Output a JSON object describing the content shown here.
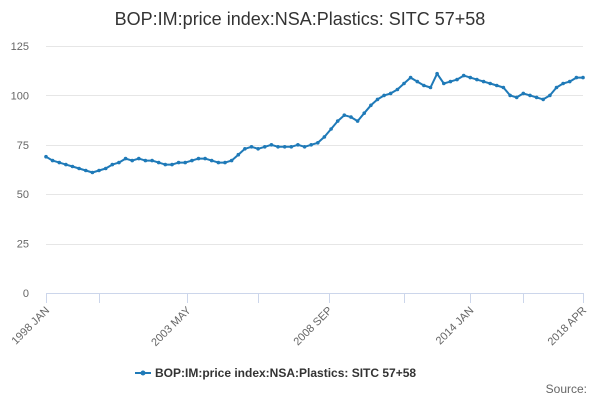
{
  "chart_data": {
    "type": "line",
    "title": "BOP:IM:price index:NSA:Plastics: SITC 57+58",
    "xlabel": "",
    "ylabel": "",
    "ylim": [
      0,
      125
    ],
    "y_ticks": [
      0,
      25,
      50,
      75,
      100,
      125
    ],
    "x_range": [
      1998.0,
      2018.25
    ],
    "x_ticks": [
      {
        "label": "1998 JAN",
        "value": 1998.0
      },
      {
        "label": "2003 MAY",
        "value": 2003.333
      },
      {
        "label": "2008 SEP",
        "value": 2008.667
      },
      {
        "label": "2014 JAN",
        "value": 2014.0
      },
      {
        "label": "2018 APR",
        "value": 2018.25
      }
    ],
    "minor_x_ticks": [
      2000.0,
      2006.0,
      2011.5,
      2016.0
    ],
    "grid": true,
    "legend_position": "bottom",
    "series": [
      {
        "name": "BOP:IM:price index:NSA:Plastics: SITC 57+58",
        "color": "#1f7ab8",
        "x": [
          1998.0,
          1998.25,
          1998.5,
          1998.75,
          1999.0,
          1999.25,
          1999.5,
          1999.75,
          2000.0,
          2000.25,
          2000.5,
          2000.75,
          2001.0,
          2001.25,
          2001.5,
          2001.75,
          2002.0,
          2002.25,
          2002.5,
          2002.75,
          2003.0,
          2003.25,
          2003.5,
          2003.75,
          2004.0,
          2004.25,
          2004.5,
          2004.75,
          2005.0,
          2005.25,
          2005.5,
          2005.75,
          2006.0,
          2006.25,
          2006.5,
          2006.75,
          2007.0,
          2007.25,
          2007.5,
          2007.75,
          2008.0,
          2008.25,
          2008.5,
          2008.75,
          2009.0,
          2009.25,
          2009.5,
          2009.75,
          2010.0,
          2010.25,
          2010.5,
          2010.75,
          2011.0,
          2011.25,
          2011.5,
          2011.75,
          2012.0,
          2012.25,
          2012.5,
          2012.75,
          2013.0,
          2013.25,
          2013.5,
          2013.75,
          2014.0,
          2014.25,
          2014.5,
          2014.75,
          2015.0,
          2015.25,
          2015.5,
          2015.75,
          2016.0,
          2016.25,
          2016.5,
          2016.75,
          2017.0,
          2017.25,
          2017.5,
          2017.75,
          2018.0,
          2018.25
        ],
        "values": [
          69,
          67,
          66,
          65,
          64,
          63,
          62,
          61,
          62,
          63,
          65,
          66,
          68,
          67,
          68,
          67,
          67,
          66,
          65,
          65,
          66,
          66,
          67,
          68,
          68,
          67,
          66,
          66,
          67,
          70,
          73,
          74,
          73,
          74,
          75,
          74,
          74,
          74,
          75,
          74,
          75,
          76,
          79,
          83,
          87,
          90,
          89,
          87,
          91,
          95,
          98,
          100,
          101,
          103,
          106,
          109,
          107,
          105,
          104,
          111,
          106,
          107,
          108,
          110,
          109,
          108,
          107,
          106,
          105,
          104,
          100,
          99,
          101,
          100,
          99,
          98,
          100,
          104,
          106,
          107,
          109,
          109
        ]
      }
    ]
  },
  "legend": {
    "label": "BOP:IM:price index:NSA:Plastics: SITC 57+58"
  },
  "footer": {
    "source_label": "Source:"
  }
}
